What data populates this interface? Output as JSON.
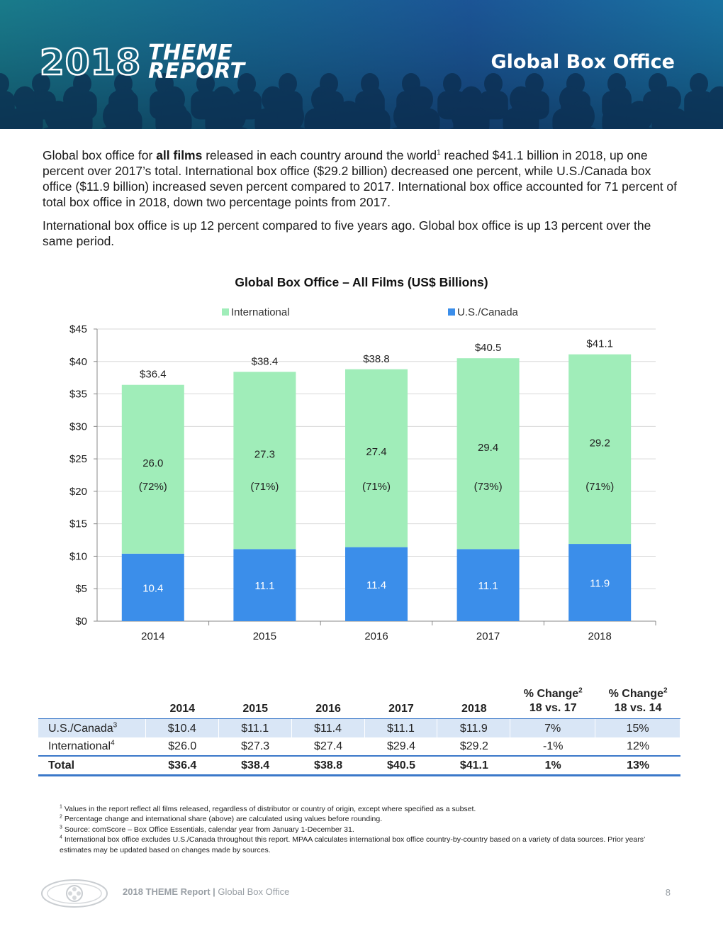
{
  "header": {
    "brand_year": "2018",
    "brand_line1": "THEME",
    "brand_line2": "REPORT",
    "section_title": "Global Box Office"
  },
  "intro": {
    "p1_a": "Global box office for ",
    "p1_bold": "all films",
    "p1_b": " released in each country around the world",
    "p1_sup": "1",
    "p1_c": " reached $41.1 billion in 2018, up one percent over 2017’s total. International box office ($29.2 billion) decreased one percent, while U.S./Canada box office ($11.9 billion) increased seven percent compared to 2017. International box office accounted for 71 percent of total box office in 2018, down two percentage points from 2017.",
    "p2": "International box office is up 12 percent compared to five years ago. Global box office is up 13 percent over the same period."
  },
  "chart_data": {
    "type": "bar",
    "stacked": true,
    "title": "Global Box Office – All Films (US$ Billions)",
    "categories": [
      "2014",
      "2015",
      "2016",
      "2017",
      "2018"
    ],
    "series": [
      {
        "name": "U.S./Canada",
        "values": [
          10.4,
          11.1,
          11.4,
          11.1,
          11.9
        ],
        "color": "#3b8eea",
        "labels": [
          "10.4",
          "11.1",
          "11.4",
          "11.1",
          "11.9"
        ]
      },
      {
        "name": "International",
        "values": [
          26.0,
          27.3,
          27.4,
          29.4,
          29.2
        ],
        "color": "#a0edb9",
        "labels": [
          "26.0",
          "27.3",
          "27.4",
          "29.4",
          "29.2"
        ],
        "share_labels": [
          "(72%)",
          "(71%)",
          "(71%)",
          "(73%)",
          "(71%)"
        ]
      }
    ],
    "totals": [
      36.4,
      38.4,
      38.8,
      40.5,
      41.1
    ],
    "total_labels": [
      "$36.4",
      "$38.4",
      "$38.8",
      "$40.5",
      "$41.1"
    ],
    "ylim": [
      0,
      45
    ],
    "yticks": [
      0,
      5,
      10,
      15,
      20,
      25,
      30,
      35,
      40,
      45
    ],
    "ytick_labels": [
      "$0",
      "$5",
      "$10",
      "$15",
      "$20",
      "$25",
      "$30",
      "$35",
      "$40",
      "$45"
    ],
    "grid": true,
    "legend_position": "top"
  },
  "table": {
    "headers": [
      "",
      "2014",
      "2015",
      "2016",
      "2017",
      "2018"
    ],
    "pct_headers": [
      {
        "line1": "% Change",
        "sup": "2",
        "line2": "18 vs. 17"
      },
      {
        "line1": "% Change",
        "sup": "2",
        "line2": "18 vs. 14"
      }
    ],
    "rows": [
      {
        "label": "U.S./Canada",
        "sup": "3",
        "values": [
          "$10.4",
          "$11.1",
          "$11.4",
          "$11.1",
          "$11.9",
          "7%",
          "15%"
        ]
      },
      {
        "label": "International",
        "sup": "4",
        "values": [
          "$26.0",
          "$27.3",
          "$27.4",
          "$29.4",
          "$29.2",
          "-1%",
          "12%"
        ]
      },
      {
        "label": "Total",
        "sup": "",
        "values": [
          "$36.4",
          "$38.4",
          "$38.8",
          "$40.5",
          "$41.1",
          "1%",
          "13%"
        ]
      }
    ]
  },
  "footnotes": [
    {
      "num": "1",
      "text": "Values in the report reflect all films released, regardless of distributor or country of origin, except where specified as a subset."
    },
    {
      "num": "2",
      "text": "Percentage change and international share (above) are calculated using values before rounding."
    },
    {
      "num": "3",
      "text": "Source:  comScore – Box Office Essentials, calendar year from January 1-December 31."
    },
    {
      "num": "4",
      "text": "International box office excludes U.S./Canada throughout this report. MPAA calculates international box office country-by-country based on a variety of data sources. Prior years’ estimates may be updated based on changes made by sources."
    }
  ],
  "footer": {
    "report_name": "2018 THEME Report |",
    "section": " Global Box Office",
    "page": "8"
  }
}
